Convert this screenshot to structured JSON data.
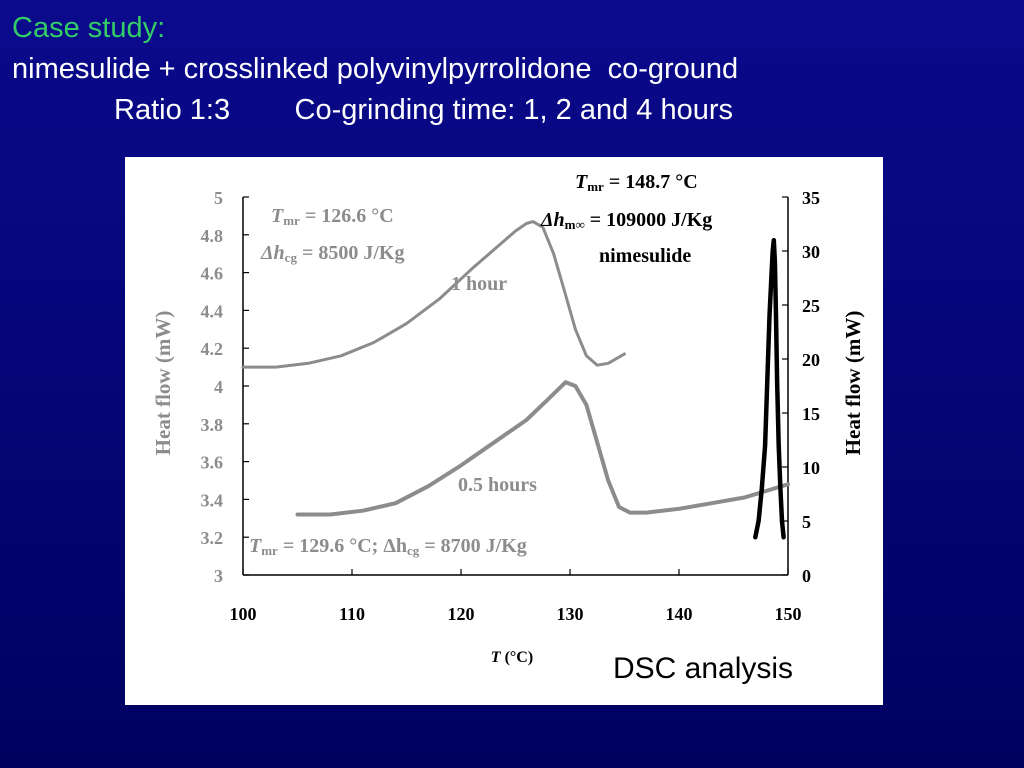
{
  "slide": {
    "title_line1": "Case study:",
    "title_line2": "nimesulide + crosslinked polyvinylpyrrolidone  co-ground",
    "title_line3": "Ratio 1:3        Co-grinding time: 1, 2 and 4 hours",
    "caption": "DSC analysis"
  },
  "colors": {
    "gray_curve": "#8c8c8c",
    "black_curve": "#000000",
    "green_title": "#33cc66"
  },
  "chart_data": {
    "type": "line",
    "title": "",
    "xlabel": "T (°C)",
    "ylabel_left": "Heat flow (mW)",
    "ylabel_right": "Heat flow (mW)",
    "xlim": [
      100,
      150
    ],
    "ylim_left": [
      3,
      5
    ],
    "ylim_right": [
      0,
      35
    ],
    "x_ticks": [
      "100",
      "110",
      "120",
      "130",
      "140",
      "150"
    ],
    "y_left_ticks": [
      "3",
      "3.2",
      "3.4",
      "3.6",
      "3.8",
      "4",
      "4.2",
      "4.4",
      "4.6",
      "4.8",
      "5"
    ],
    "y_right_ticks": [
      "0",
      "5",
      "10",
      "15",
      "20",
      "25",
      "30",
      "35"
    ],
    "grid": false,
    "series": [
      {
        "name": "1 hour",
        "axis": "left",
        "points": [
          [
            100,
            4.1
          ],
          [
            103,
            4.1
          ],
          [
            106,
            4.12
          ],
          [
            109,
            4.16
          ],
          [
            112,
            4.23
          ],
          [
            115,
            4.33
          ],
          [
            118,
            4.46
          ],
          [
            121,
            4.62
          ],
          [
            123,
            4.72
          ],
          [
            125,
            4.82
          ],
          [
            126,
            4.86
          ],
          [
            126.6,
            4.87
          ],
          [
            127.5,
            4.84
          ],
          [
            128.5,
            4.7
          ],
          [
            129.5,
            4.5
          ],
          [
            130.5,
            4.3
          ],
          [
            131.5,
            4.16
          ],
          [
            132.5,
            4.11
          ],
          [
            133.5,
            4.12
          ],
          [
            135,
            4.17
          ]
        ]
      },
      {
        "name": "0.5 hours",
        "axis": "left",
        "points": [
          [
            105,
            3.32
          ],
          [
            108,
            3.32
          ],
          [
            111,
            3.34
          ],
          [
            114,
            3.38
          ],
          [
            117,
            3.47
          ],
          [
            120,
            3.58
          ],
          [
            123,
            3.7
          ],
          [
            126,
            3.82
          ],
          [
            128,
            3.93
          ],
          [
            129.6,
            4.02
          ],
          [
            130.5,
            4.0
          ],
          [
            131.5,
            3.9
          ],
          [
            132.5,
            3.7
          ],
          [
            133.5,
            3.5
          ],
          [
            134.5,
            3.36
          ],
          [
            135.5,
            3.33
          ],
          [
            137,
            3.33
          ],
          [
            140,
            3.35
          ],
          [
            143,
            3.38
          ],
          [
            146,
            3.41
          ],
          [
            150,
            3.48
          ]
        ]
      },
      {
        "name": "nimesulide",
        "axis": "right",
        "points": [
          [
            147,
            3.5
          ],
          [
            147.3,
            5
          ],
          [
            147.6,
            8
          ],
          [
            147.9,
            12
          ],
          [
            148.1,
            18
          ],
          [
            148.3,
            24
          ],
          [
            148.5,
            28
          ],
          [
            148.6,
            30
          ],
          [
            148.7,
            31
          ],
          [
            148.8,
            29
          ],
          [
            148.9,
            24
          ],
          [
            149.0,
            18
          ],
          [
            149.15,
            12
          ],
          [
            149.3,
            8
          ],
          [
            149.45,
            5
          ],
          [
            149.6,
            3.5
          ]
        ]
      }
    ],
    "annotations": [
      {
        "text_main": "T",
        "text_sub": "mr",
        "text_rest": " = 126.6 °C"
      },
      {
        "text_main": "Δh",
        "text_sub": "cg",
        "text_rest": " = 8500 J/Kg"
      },
      {
        "text": "1 hour"
      },
      {
        "text": "0.5 hours"
      },
      {
        "text_main": "T",
        "text_sub": "mr",
        "text_rest": " = 129.6 °C; Δh",
        "text_sub2": "cg",
        "text_rest2": " = 8700 J/Kg"
      },
      {
        "text_main": "T",
        "text_sub": "mr",
        "text_rest": " = 148.7 °C"
      },
      {
        "text_main": "Δh",
        "text_sub": "m∞",
        "text_rest": " = 109000 J/Kg"
      },
      {
        "text": "nimesulide"
      }
    ]
  }
}
